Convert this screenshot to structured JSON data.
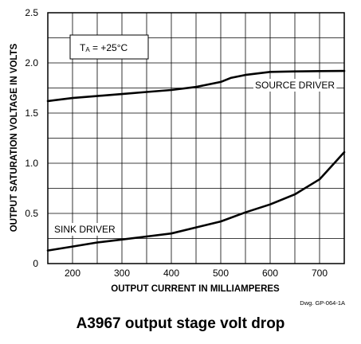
{
  "caption": "A3967 output stage volt drop",
  "chart_data": {
    "type": "line",
    "title": "",
    "xlabel": "OUTPUT CURRENT IN MILLIAMPERES",
    "ylabel": "OUTPUT SATURATION VOLTAGE IN VOLTS",
    "xlim": [
      150,
      750
    ],
    "ylim": [
      0,
      2.5
    ],
    "x_ticks": [
      200,
      300,
      400,
      500,
      600,
      700
    ],
    "x_grid": [
      150,
      200,
      250,
      300,
      350,
      400,
      450,
      500,
      550,
      600,
      650,
      700,
      750
    ],
    "y_ticks": [
      "0",
      "0.5",
      "1.0",
      "1.5",
      "2.0",
      "2.5"
    ],
    "y_tick_values": [
      0,
      0.5,
      1.0,
      1.5,
      2.0,
      2.5
    ],
    "y_grid": [
      0,
      0.25,
      0.5,
      0.75,
      1.0,
      1.25,
      1.5,
      1.75,
      2.0,
      2.25,
      2.5
    ],
    "grid": true,
    "annotation": {
      "label": "T",
      "subscript": "A",
      "value": " = +25°C"
    },
    "drawing_number": "Dwg. GP-064-1A",
    "series": [
      {
        "name": "SOURCE DRIVER",
        "x": [
          150,
          200,
          250,
          300,
          350,
          400,
          450,
          500,
          520,
          550,
          600,
          650,
          700,
          750
        ],
        "y": [
          1.62,
          1.65,
          1.67,
          1.69,
          1.71,
          1.73,
          1.76,
          1.81,
          1.85,
          1.88,
          1.91,
          1.915,
          1.918,
          1.92
        ]
      },
      {
        "name": "SINK DRIVER",
        "x": [
          150,
          200,
          250,
          300,
          350,
          400,
          450,
          500,
          550,
          600,
          650,
          700,
          750
        ],
        "y": [
          0.13,
          0.17,
          0.21,
          0.24,
          0.27,
          0.3,
          0.36,
          0.42,
          0.51,
          0.59,
          0.69,
          0.84,
          1.11
        ]
      }
    ]
  }
}
